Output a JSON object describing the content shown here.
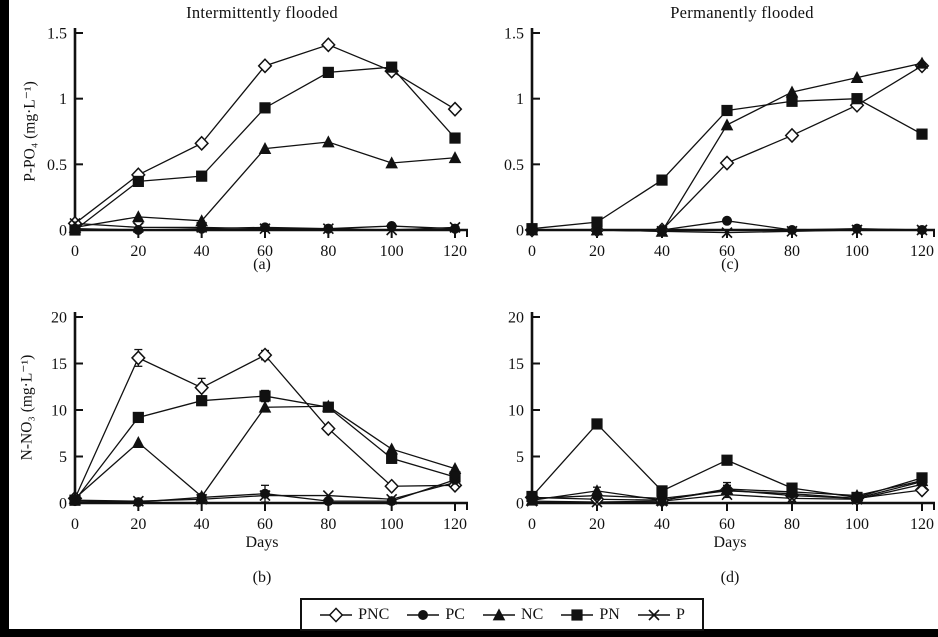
{
  "figure": {
    "ink_color": "#111111",
    "background": "#ffffff",
    "legend": [
      {
        "label": "PNC",
        "marker": "diamond-open"
      },
      {
        "label": "PC",
        "marker": "circle-filled"
      },
      {
        "label": "NC",
        "marker": "triangle-filled"
      },
      {
        "label": "PN",
        "marker": "square-filled"
      },
      {
        "label": "P",
        "marker": "x-cross"
      }
    ]
  },
  "chart_data": [
    {
      "id": "a",
      "type": "line",
      "panel_label": "(a)",
      "title": "Intermittently flooded",
      "ylabel": "P-PO₄ (mg·L⁻¹)",
      "xlabel": "",
      "x": [
        0,
        20,
        40,
        60,
        80,
        100,
        120
      ],
      "xlim": [
        0,
        120
      ],
      "xticks": [
        0,
        20,
        40,
        60,
        80,
        100,
        120
      ],
      "ylim": [
        0,
        1.5
      ],
      "yticks": [
        0,
        0.5,
        1,
        1.5
      ],
      "series": [
        {
          "name": "PNC",
          "marker": "diamond-open",
          "values": [
            0.05,
            0.42,
            0.66,
            1.25,
            1.41,
            1.21,
            0.92
          ]
        },
        {
          "name": "PC",
          "marker": "circle-filled",
          "values": [
            0.01,
            0.0,
            0.01,
            0.02,
            0.01,
            0.03,
            0.01
          ]
        },
        {
          "name": "NC",
          "marker": "triangle-filled",
          "values": [
            0.02,
            0.1,
            0.07,
            0.62,
            0.67,
            0.51,
            0.55
          ]
        },
        {
          "name": "PN",
          "marker": "square-filled",
          "values": [
            0.0,
            0.37,
            0.41,
            0.93,
            1.2,
            1.24,
            0.7
          ]
        },
        {
          "name": "P",
          "marker": "x-cross",
          "values": [
            0.05,
            0.02,
            0.02,
            0.01,
            0.01,
            0.0,
            0.02
          ]
        }
      ]
    },
    {
      "id": "b",
      "type": "line",
      "panel_label": "(b)",
      "title": "",
      "ylabel": "N-NO₃ (mg·L⁻¹)",
      "xlabel": "Days",
      "x": [
        0,
        20,
        40,
        60,
        80,
        100,
        120
      ],
      "xlim": [
        0,
        120
      ],
      "xticks": [
        0,
        20,
        40,
        60,
        80,
        100,
        120
      ],
      "ylim": [
        0,
        20
      ],
      "yticks": [
        0,
        5,
        10,
        15,
        20
      ],
      "series": [
        {
          "name": "PNC",
          "marker": "diamond-open",
          "values": [
            0.5,
            15.6,
            12.4,
            15.9,
            8.0,
            1.8,
            1.9
          ],
          "err": [
            0,
            0.9,
            1.0,
            0.5,
            0,
            0,
            0.3
          ]
        },
        {
          "name": "PC",
          "marker": "circle-filled",
          "values": [
            0.2,
            0.1,
            0.6,
            1.0,
            0.2,
            0.2,
            2.5
          ],
          "err": [
            0,
            0,
            0,
            0.9,
            0,
            0,
            0
          ]
        },
        {
          "name": "NC",
          "marker": "triangle-filled",
          "values": [
            0.5,
            6.5,
            0.7,
            10.3,
            10.4,
            5.8,
            3.7
          ]
        },
        {
          "name": "PN",
          "marker": "square-filled",
          "values": [
            0.3,
            9.2,
            11.0,
            11.5,
            10.3,
            4.8,
            2.8
          ],
          "err": [
            0,
            0,
            0.5,
            0.6,
            0.5,
            0,
            0
          ]
        },
        {
          "name": "P",
          "marker": "x-cross",
          "values": [
            0.3,
            0.2,
            0.4,
            0.8,
            0.8,
            0.4,
            2.2
          ]
        }
      ]
    },
    {
      "id": "c",
      "type": "line",
      "panel_label": "(c)",
      "title": "Permanently flooded",
      "ylabel": "",
      "xlabel": "",
      "x": [
        0,
        20,
        40,
        60,
        80,
        100,
        120
      ],
      "xlim": [
        0,
        120
      ],
      "xticks": [
        0,
        20,
        40,
        60,
        80,
        100,
        120
      ],
      "ylim": [
        0,
        1.5
      ],
      "yticks": [
        0,
        0.5,
        1,
        1.5
      ],
      "series": [
        {
          "name": "PNC",
          "marker": "diamond-open",
          "values": [
            0.0,
            0.0,
            0.0,
            0.51,
            0.72,
            0.95,
            1.25
          ]
        },
        {
          "name": "PC",
          "marker": "circle-filled",
          "values": [
            0.0,
            0.0,
            0.0,
            0.07,
            0.0,
            0.01,
            0.0
          ]
        },
        {
          "name": "NC",
          "marker": "triangle-filled",
          "values": [
            0.0,
            0.0,
            -0.01,
            0.8,
            1.05,
            1.16,
            1.27
          ]
        },
        {
          "name": "PN",
          "marker": "square-filled",
          "values": [
            0.01,
            0.06,
            0.38,
            0.91,
            0.98,
            1.0,
            0.73
          ]
        },
        {
          "name": "P",
          "marker": "x-cross",
          "values": [
            0.0,
            0.0,
            -0.01,
            -0.02,
            -0.01,
            0.0,
            0.0
          ]
        }
      ]
    },
    {
      "id": "d",
      "type": "line",
      "panel_label": "(d)",
      "title": "",
      "ylabel": "",
      "xlabel": "Days",
      "x": [
        0,
        20,
        40,
        60,
        80,
        100,
        120
      ],
      "xlim": [
        0,
        120
      ],
      "xticks": [
        0,
        20,
        40,
        60,
        80,
        100,
        120
      ],
      "ylim": [
        0,
        20
      ],
      "yticks": [
        0,
        5,
        10,
        15,
        20
      ],
      "series": [
        {
          "name": "PNC",
          "marker": "diamond-open",
          "values": [
            0.6,
            0.4,
            0.3,
            1.4,
            0.8,
            0.5,
            1.4
          ],
          "err": [
            0,
            0,
            0,
            0.8,
            0.6,
            0,
            0
          ]
        },
        {
          "name": "PC",
          "marker": "circle-filled",
          "values": [
            0.5,
            0.8,
            0.5,
            1.3,
            1.0,
            0.5,
            2.3
          ]
        },
        {
          "name": "NC",
          "marker": "triangle-filled",
          "values": [
            0.3,
            1.3,
            0.3,
            1.5,
            1.2,
            0.8,
            2.4
          ],
          "err": [
            0,
            0.4,
            0,
            0.4,
            0,
            0,
            0
          ]
        },
        {
          "name": "PN",
          "marker": "square-filled",
          "values": [
            0.7,
            8.5,
            1.3,
            4.6,
            1.6,
            0.6,
            2.7
          ]
        },
        {
          "name": "P",
          "marker": "x-cross",
          "values": [
            0.2,
            0.1,
            0.2,
            0.9,
            0.5,
            0.4,
            2.0
          ]
        }
      ]
    }
  ]
}
